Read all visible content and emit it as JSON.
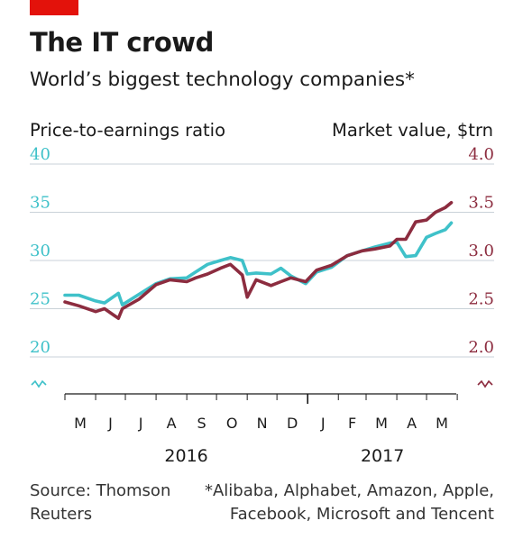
{
  "headline": {
    "title": "The IT crowd",
    "subtitle": "World’s biggest technology companies*"
  },
  "colors": {
    "pe": "#3fc1c9",
    "mv": "#8c2c3f",
    "brand": "#e3120b"
  },
  "footer": {
    "source": "Source: Thomson Reuters",
    "note": "*Alibaba, Alphabet, Amazon, Apple, Facebook, Microsoft and Tencent"
  },
  "chart_data": {
    "type": "line",
    "axes": {
      "left": {
        "label": "Price-to-earnings ratio",
        "ticks": [
          "20",
          "25",
          "30",
          "35",
          "40"
        ],
        "range": [
          20,
          40
        ]
      },
      "right": {
        "label": "Market value, $trn",
        "ticks": [
          "2.0",
          "2.5",
          "3.0",
          "3.5",
          "4.0"
        ],
        "range": [
          2.0,
          4.0
        ]
      }
    },
    "x_ticks": [
      "M",
      "J",
      "J",
      "A",
      "S",
      "O",
      "N",
      "D",
      "J",
      "F",
      "M",
      "A",
      "M"
    ],
    "years": [
      "2016",
      "2017"
    ],
    "x_range": [
      "2016-05-01",
      "2017-05-31"
    ],
    "grid": true,
    "series": [
      {
        "name": "Price-to-earnings ratio",
        "axis": "left",
        "x": [
          "2016-05-01",
          "2016-05-15",
          "2016-06-01",
          "2016-06-10",
          "2016-06-24",
          "2016-06-28",
          "2016-07-15",
          "2016-08-01",
          "2016-08-15",
          "2016-09-01",
          "2016-09-10",
          "2016-09-22",
          "2016-10-05",
          "2016-10-15",
          "2016-10-27",
          "2016-11-01",
          "2016-11-10",
          "2016-11-25",
          "2016-12-05",
          "2016-12-15",
          "2016-12-30",
          "2017-01-10",
          "2017-01-25",
          "2017-02-10",
          "2017-02-25",
          "2017-03-10",
          "2017-03-25",
          "2017-04-01",
          "2017-04-10",
          "2017-04-20",
          "2017-05-01",
          "2017-05-10",
          "2017-05-20",
          "2017-05-26"
        ],
        "values": [
          26.4,
          26.4,
          25.8,
          25.6,
          26.6,
          25.4,
          26.5,
          27.6,
          28.1,
          28.2,
          28.8,
          29.6,
          30.0,
          30.3,
          30.0,
          28.6,
          28.7,
          28.6,
          29.2,
          28.4,
          27.6,
          28.8,
          29.3,
          30.5,
          31.0,
          31.4,
          31.8,
          31.9,
          30.4,
          30.5,
          32.4,
          32.8,
          33.2,
          33.9
        ]
      },
      {
        "name": "Market value, $trn",
        "axis": "right",
        "x": [
          "2016-05-01",
          "2016-05-15",
          "2016-06-01",
          "2016-06-10",
          "2016-06-24",
          "2016-06-28",
          "2016-07-15",
          "2016-08-01",
          "2016-08-15",
          "2016-09-01",
          "2016-09-10",
          "2016-09-22",
          "2016-10-05",
          "2016-10-15",
          "2016-10-27",
          "2016-11-01",
          "2016-11-10",
          "2016-11-25",
          "2016-12-05",
          "2016-12-15",
          "2016-12-30",
          "2017-01-10",
          "2017-01-25",
          "2017-02-10",
          "2017-02-25",
          "2017-03-10",
          "2017-03-25",
          "2017-04-01",
          "2017-04-10",
          "2017-04-20",
          "2017-05-01",
          "2017-05-10",
          "2017-05-20",
          "2017-05-26"
        ],
        "values": [
          2.57,
          2.53,
          2.47,
          2.5,
          2.4,
          2.5,
          2.6,
          2.75,
          2.8,
          2.78,
          2.82,
          2.86,
          2.92,
          2.96,
          2.85,
          2.62,
          2.8,
          2.74,
          2.78,
          2.82,
          2.78,
          2.9,
          2.95,
          3.05,
          3.1,
          3.12,
          3.15,
          3.22,
          3.22,
          3.4,
          3.42,
          3.5,
          3.55,
          3.6
        ]
      }
    ]
  }
}
